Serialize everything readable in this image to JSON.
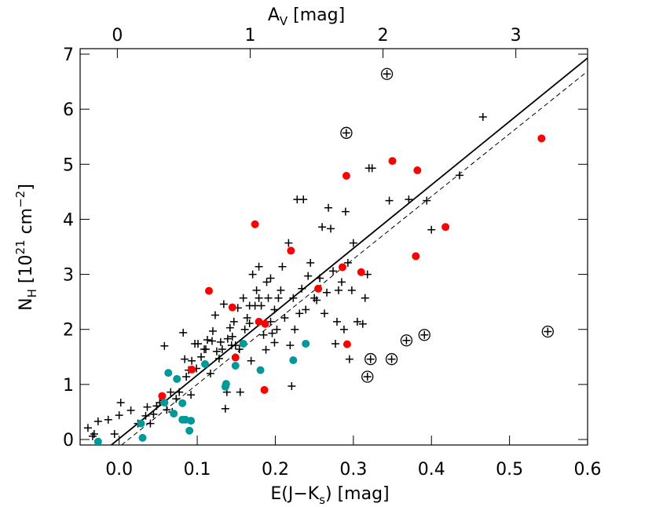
{
  "chart_data": {
    "type": "scatter",
    "xlabel": [
      "E(J−K",
      "s",
      ") [mag]"
    ],
    "ylabel": [
      "N",
      "H",
      " [10",
      "21",
      " cm",
      "−2",
      "]"
    ],
    "x2label": [
      "A",
      "V",
      " [mag]"
    ],
    "xlim": [
      -0.05,
      0.6
    ],
    "xticks": [
      {
        "value": 0,
        "label": "0.0"
      },
      0.1,
      0.2,
      0.3,
      0.4,
      0.5,
      0.6
    ],
    "ylim": [
      -0.1,
      7.1
    ],
    "yticks": [
      0,
      1,
      2,
      3,
      4,
      5,
      6,
      7
    ],
    "x2lim": [
      -0.28,
      3.54
    ],
    "x2ticks": [
      0,
      1,
      2,
      3
    ],
    "fits": [
      {
        "style": "solid",
        "x": [
          -0.01,
          0.6
        ],
        "y": [
          -0.1,
          6.93
        ]
      },
      {
        "style": "dashed",
        "x": [
          0.003,
          0.6
        ],
        "y": [
          -0.1,
          6.69
        ]
      }
    ],
    "series": [
      {
        "marker": "plus",
        "color": "#000000",
        "x": [
          -0.04,
          -0.034,
          -0.032,
          -0.027,
          -0.014,
          -0.006,
          0.0,
          0.002,
          0.015,
          0.024,
          0.034,
          0.036,
          0.04,
          0.044,
          0.048,
          0.052,
          0.057,
          0.058,
          0.061,
          0.066,
          0.068,
          0.073,
          0.077,
          0.082,
          0.084,
          0.086,
          0.092,
          0.093,
          0.097,
          0.099,
          0.105,
          0.111,
          0.113,
          0.117,
          0.12,
          0.123,
          0.125,
          0.128,
          0.13,
          0.132,
          0.134,
          0.136,
          0.138,
          0.139,
          0.142,
          0.145,
          0.147,
          0.149,
          0.152,
          0.154,
          0.155,
          0.159,
          0.161,
          0.164,
          0.167,
          0.169,
          0.171,
          0.174,
          0.176,
          0.179,
          0.182,
          0.185,
          0.188,
          0.191,
          0.194,
          0.196,
          0.199,
          0.202,
          0.204,
          0.207,
          0.209,
          0.212,
          0.217,
          0.219,
          0.221,
          0.223,
          0.225,
          0.228,
          0.231,
          0.234,
          0.236,
          0.239,
          0.242,
          0.245,
          0.25,
          0.253,
          0.257,
          0.26,
          0.263,
          0.266,
          0.268,
          0.271,
          0.274,
          0.277,
          0.279,
          0.281,
          0.285,
          0.288,
          0.29,
          0.293,
          0.295,
          0.298,
          0.3,
          0.305,
          0.312,
          0.315,
          0.318,
          0.32,
          0.324,
          0.346,
          0.371,
          0.394,
          0.4,
          0.436,
          0.466,
          0.179,
          0.189,
          0.194,
          0.199,
          0.167,
          0.144,
          0.119,
          0.109,
          0.101,
          0.089
        ],
        "y": [
          0.21,
          0.06,
          0.1,
          0.33,
          0.36,
          0.1,
          0.44,
          0.67,
          0.53,
          0.29,
          0.43,
          0.59,
          0.29,
          0.46,
          0.61,
          0.67,
          0.71,
          1.7,
          0.54,
          0.86,
          0.5,
          0.74,
          0.86,
          1.94,
          1.46,
          1.14,
          0.81,
          1.43,
          1.74,
          1.29,
          1.5,
          1.64,
          1.81,
          1.2,
          1.97,
          2.26,
          1.6,
          1.47,
          1.77,
          1.64,
          2.46,
          0.56,
          0.86,
          1.83,
          2.03,
          1.87,
          2.14,
          1.71,
          2.39,
          1.64,
          0.86,
          2.57,
          2.0,
          2.21,
          2.11,
          1.43,
          3.0,
          2.43,
          2.71,
          3.14,
          2.43,
          1.9,
          1.63,
          2.57,
          2.14,
          1.93,
          1.76,
          2.0,
          2.57,
          2.71,
          3.14,
          2.21,
          3.57,
          1.71,
          0.97,
          2.57,
          2.0,
          4.36,
          2.29,
          2.74,
          4.36,
          2.36,
          2.97,
          3.21,
          2.57,
          2.53,
          2.93,
          3.86,
          2.29,
          2.67,
          4.21,
          3.83,
          3.06,
          1.74,
          2.14,
          2.71,
          2.86,
          2.0,
          4.14,
          3.21,
          1.46,
          2.71,
          3.57,
          2.14,
          2.1,
          2.57,
          3.0,
          4.93,
          4.93,
          4.34,
          4.36,
          4.34,
          3.81,
          4.8,
          5.86,
          2.57,
          2.86,
          2.93,
          2.36,
          2.43,
          1.71,
          1.79,
          1.64,
          1.74,
          1.26
        ]
      },
      {
        "marker": "dot",
        "color": "#ff0000",
        "x": [
          0.093,
          0.055,
          0.115,
          0.145,
          0.149,
          0.174,
          0.179,
          0.187,
          0.186,
          0.22,
          0.255,
          0.286,
          0.291,
          0.292,
          0.31,
          0.35,
          0.382,
          0.38,
          0.418,
          0.541
        ],
        "y": [
          1.27,
          0.79,
          2.7,
          2.4,
          1.49,
          3.91,
          2.14,
          2.1,
          0.9,
          3.43,
          2.74,
          3.13,
          4.79,
          1.73,
          3.04,
          5.06,
          4.89,
          3.33,
          3.86,
          5.47
        ]
      },
      {
        "marker": "dot",
        "color": "#009999",
        "x": [
          -0.027,
          0.028,
          0.03,
          0.063,
          0.074,
          0.058,
          0.07,
          0.081,
          0.081,
          0.085,
          0.092,
          0.09,
          0.11,
          0.136,
          0.137,
          0.149,
          0.159,
          0.181,
          0.223,
          0.239
        ],
        "y": [
          -0.04,
          0.29,
          0.03,
          1.21,
          1.1,
          0.67,
          0.47,
          0.66,
          0.36,
          0.36,
          0.34,
          0.16,
          1.37,
          0.96,
          1.01,
          1.34,
          1.74,
          1.26,
          1.44,
          1.74
        ]
      },
      {
        "marker": "circled-plus",
        "color": "#000000",
        "x": [
          0.343,
          0.291,
          0.322,
          0.349,
          0.318,
          0.368,
          0.391,
          0.549
        ],
        "y": [
          6.64,
          5.57,
          1.46,
          1.46,
          1.14,
          1.8,
          1.9,
          1.96
        ]
      }
    ]
  }
}
